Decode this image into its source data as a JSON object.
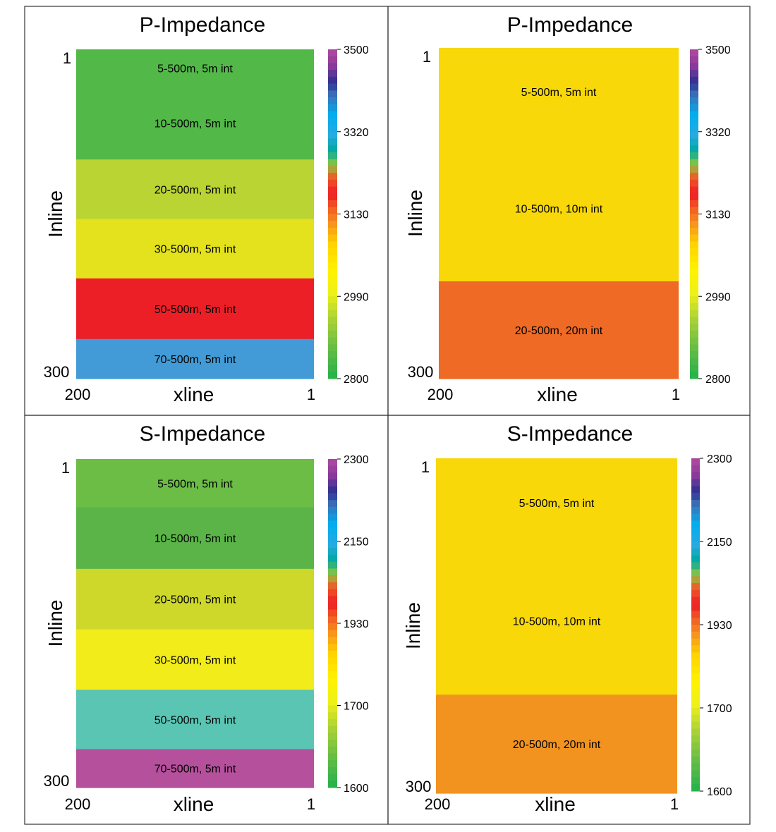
{
  "chart_data": [
    {
      "type": "heatmap",
      "title": "P-Impedance",
      "xlabel": "xline",
      "ylabel": "Inline",
      "x_ticks": [
        "200",
        "1"
      ],
      "y_ticks": [
        "1",
        "300"
      ],
      "colorbar": {
        "min": 2800,
        "max": 3500,
        "ticks": [
          "3500",
          "3320",
          "3130",
          "2990",
          "2800"
        ]
      },
      "layers": [
        {
          "label": "5-500m, 5m int",
          "color": "#52b848",
          "top": 1,
          "bottom": 35
        },
        {
          "label": "10-500m, 5m int",
          "color": "#52b848",
          "top": 35,
          "bottom": 101
        },
        {
          "label": "20-500m, 5m int",
          "color": "#b9d433",
          "top": 101,
          "bottom": 155
        },
        {
          "label": "30-500m, 5m int",
          "color": "#e3e21d",
          "top": 155,
          "bottom": 209
        },
        {
          "label": "50-500m, 5m int",
          "color": "#ec1f27",
          "top": 209,
          "bottom": 264
        },
        {
          "label": "70-500m, 5m int",
          "color": "#429bd6",
          "top": 264,
          "bottom": 300
        }
      ]
    },
    {
      "type": "heatmap",
      "title": "P-Impedance",
      "xlabel": "xline",
      "ylabel": "Inline",
      "x_ticks": [
        "200",
        "1"
      ],
      "y_ticks": [
        "1",
        "300"
      ],
      "colorbar": {
        "min": 2800,
        "max": 3500,
        "ticks": [
          "3500",
          "3320",
          "3130",
          "2990",
          "2800"
        ]
      },
      "layers": [
        {
          "label": "5-500m, 5m int",
          "color": "#f8d808",
          "top": 1,
          "bottom": 80
        },
        {
          "label": "10-500m, 10m int",
          "color": "#f8d808",
          "top": 80,
          "bottom": 212
        },
        {
          "label": "20-500m, 20m int",
          "color": "#ef6a24",
          "top": 212,
          "bottom": 300
        }
      ]
    },
    {
      "type": "heatmap",
      "title": "S-Impedance",
      "xlabel": "xline",
      "ylabel": "Inline",
      "x_ticks": [
        "200",
        "1"
      ],
      "y_ticks": [
        "1",
        "300"
      ],
      "colorbar": {
        "min": 1600,
        "max": 2300,
        "ticks": [
          "2300",
          "2150",
          "1930",
          "1700",
          "1600"
        ]
      },
      "layers": [
        {
          "label": "5-500m, 5m int",
          "color": "#6bbd45",
          "top": 1,
          "bottom": 45
        },
        {
          "label": "10-500m, 5m int",
          "color": "#5bb448",
          "top": 45,
          "bottom": 101
        },
        {
          "label": "20-500m, 5m int",
          "color": "#cdd82a",
          "top": 101,
          "bottom": 156
        },
        {
          "label": "30-500m, 5m int",
          "color": "#f2ec1b",
          "top": 156,
          "bottom": 211
        },
        {
          "label": "50-500m, 5m int",
          "color": "#5bc5b4",
          "top": 211,
          "bottom": 265
        },
        {
          "label": "70-500m, 5m int",
          "color": "#b5509c",
          "top": 265,
          "bottom": 300
        }
      ]
    },
    {
      "type": "heatmap",
      "title": "S-Impedance",
      "xlabel": "xline",
      "ylabel": "Inline",
      "x_ticks": [
        "200",
        "1"
      ],
      "y_ticks": [
        "1",
        "300"
      ],
      "colorbar": {
        "min": 1600,
        "max": 2300,
        "ticks": [
          "2300",
          "2150",
          "1930",
          "1700",
          "1600"
        ]
      },
      "layers": [
        {
          "label": "5-500m, 5m int",
          "color": "#f8d808",
          "top": 1,
          "bottom": 80
        },
        {
          "label": "10-500m, 10m int",
          "color": "#f8d808",
          "top": 80,
          "bottom": 212
        },
        {
          "label": "20-500m, 20m int",
          "color": "#f3931f",
          "top": 212,
          "bottom": 300
        }
      ]
    }
  ]
}
